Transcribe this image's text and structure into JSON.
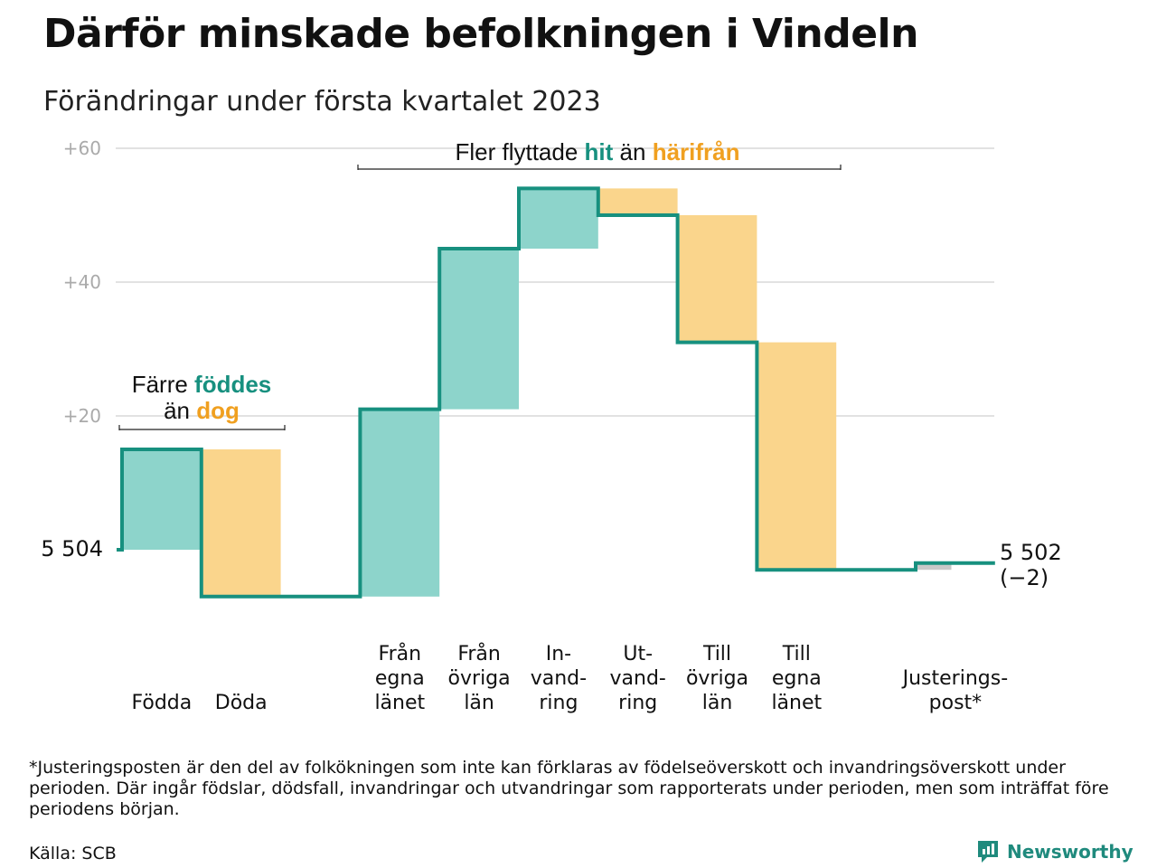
{
  "title": "Därför minskade befolkningen i Vindeln",
  "subtitle": "Förändringar under första kvartalet 2023",
  "colors": {
    "increase": "#8dd4cb",
    "decrease": "#fad58c",
    "adjustment": "#c8c8c8",
    "line": "#17907f",
    "grid": "#d9d9d9"
  },
  "chart_data": {
    "type": "waterfall",
    "start_value": 5504,
    "start_label": "5 504",
    "end_value": 5502,
    "end_label": "5 502",
    "end_change_label": "(−2)",
    "y_axis": {
      "range": [
        -7,
        60
      ],
      "ticks": [
        {
          "value": 20,
          "label": "+20"
        },
        {
          "value": 40,
          "label": "+40"
        },
        {
          "value": 60,
          "label": "+60"
        }
      ],
      "grid": true
    },
    "steps": [
      {
        "lines": [
          "",
          "",
          "Födda"
        ],
        "delta": 15,
        "kind": "increase"
      },
      {
        "lines": [
          "",
          "",
          "Döda"
        ],
        "delta": -22,
        "kind": "decrease"
      },
      {
        "lines": [],
        "delta": 0,
        "kind": "gap"
      },
      {
        "lines": [
          "Från",
          "egna",
          "länet"
        ],
        "delta": 28,
        "kind": "increase"
      },
      {
        "lines": [
          "Från",
          "övriga",
          "län"
        ],
        "delta": 24,
        "kind": "increase"
      },
      {
        "lines": [
          "In-",
          "vand-",
          "ring"
        ],
        "delta": 9,
        "kind": "increase"
      },
      {
        "lines": [
          "Ut-",
          "vand-",
          "ring"
        ],
        "delta": -4,
        "kind": "decrease"
      },
      {
        "lines": [
          "Till",
          "övriga",
          "län"
        ],
        "delta": -19,
        "kind": "decrease"
      },
      {
        "lines": [
          "Till",
          "egna",
          "länet"
        ],
        "delta": -34,
        "kind": "decrease"
      },
      {
        "lines": [],
        "delta": 0,
        "kind": "gap"
      },
      {
        "lines": [
          "",
          "Justerings-",
          "post*"
        ],
        "delta": 1,
        "kind": "adjustment"
      }
    ],
    "annotations": [
      {
        "parts": [
          {
            "text": "Färre ",
            "style": "plain"
          },
          {
            "text": "föddes",
            "style": "teal"
          }
        ],
        "parts2": [
          {
            "text": "än ",
            "style": "plain"
          },
          {
            "text": "dog",
            "style": "orange"
          }
        ]
      },
      {
        "parts": [
          {
            "text": "Fler flyttade ",
            "style": "plain"
          },
          {
            "text": "hit",
            "style": "teal"
          },
          {
            "text": " än ",
            "style": "plain"
          },
          {
            "text": "härifrån",
            "style": "orange"
          }
        ]
      }
    ]
  },
  "footnote": "*Justeringsposten är den del av folkökningen som inte kan förklaras av födelseöverskott och invandringsöverskott under perioden. Där ingår födslar, dödsfall, invandringar och utvandringar som rapporterats under perioden, men som inträffat före periodens början.",
  "source": "Källa: SCB",
  "brand": {
    "name": "Newsworthy",
    "icon": "newsworthy-logo-icon"
  }
}
